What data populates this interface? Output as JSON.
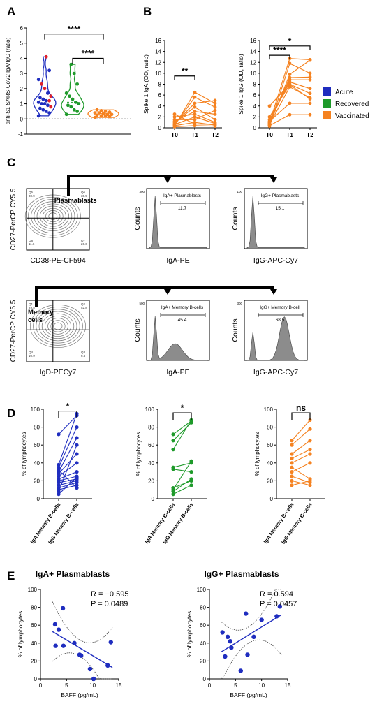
{
  "panel_letters": [
    "A",
    "B",
    "C",
    "D",
    "E"
  ],
  "colors": {
    "acute": "#1f2dbf",
    "recovered": "#1e9a2a",
    "vaccinated": "#f58220",
    "red": "#e0202a",
    "hist_fill": "#8c8c8c",
    "ci": "#444444"
  },
  "legend": [
    {
      "label": "Acute",
      "color": "#1f2dbf"
    },
    {
      "label": "Recovered",
      "color": "#1e9a2a"
    },
    {
      "label": "Vaccinated",
      "color": "#f58220"
    }
  ],
  "chart_data": [
    {
      "id": "A",
      "type": "scatter",
      "title": "",
      "xlabel": "",
      "ylabel": "anti-S1 SARS-CoV2 IgA/IgG (ratio)",
      "ylim": [
        -1,
        6
      ],
      "yticks": [
        -1,
        0,
        1,
        2,
        3,
        4,
        5,
        6
      ],
      "groups": [
        {
          "name": "Acute",
          "color": "#1f2dbf",
          "values": [
            0.2,
            0.4,
            0.5,
            0.6,
            0.7,
            0.8,
            0.9,
            1.0,
            1.0,
            1.1,
            1.2,
            1.2,
            1.3,
            1.4,
            1.5,
            1.7,
            2.0,
            2.3,
            2.6,
            3.2,
            4.1
          ],
          "red_points": [
            0.8,
            1.2,
            1.5,
            2.0,
            2.3,
            4.1
          ]
        },
        {
          "name": "Recovered",
          "color": "#1e9a2a",
          "values": [
            0.3,
            0.5,
            0.6,
            0.8,
            0.9,
            1.0,
            1.1,
            1.3,
            1.5,
            1.7,
            2.3,
            3.0,
            3.6
          ]
        },
        {
          "name": "Vaccinated",
          "color": "#f58220",
          "values": [
            0.1,
            0.15,
            0.2,
            0.2,
            0.25,
            0.3,
            0.3,
            0.35,
            0.4,
            0.4,
            0.45,
            0.5,
            0.55,
            0.6
          ]
        }
      ],
      "significance": [
        {
          "from": 0,
          "to": 2,
          "label": "****",
          "y": 5.6
        },
        {
          "from": 1,
          "to": 2,
          "label": "****",
          "y": 4.0
        }
      ]
    },
    {
      "id": "B1",
      "type": "line",
      "ylabel": "Spike 1 IgA (OD, ratio)",
      "ylim": [
        0,
        16
      ],
      "yticks": [
        0,
        2,
        4,
        6,
        8,
        10,
        12,
        14,
        16
      ],
      "categories": [
        "T0",
        "T1",
        "T2"
      ],
      "series": [
        {
          "values": [
            0.3,
            6.5,
            4.5
          ]
        },
        {
          "values": [
            0.5,
            5.6,
            3.8
          ]
        },
        {
          "values": [
            0.8,
            4.5,
            5.0
          ]
        },
        {
          "values": [
            1.0,
            3.8,
            1.5
          ]
        },
        {
          "values": [
            1.2,
            3.0,
            2.5
          ]
        },
        {
          "values": [
            2.0,
            2.5,
            1.0
          ]
        },
        {
          "values": [
            0.6,
            2.0,
            0.8
          ]
        },
        {
          "values": [
            1.5,
            1.5,
            3.2
          ]
        },
        {
          "values": [
            0.4,
            1.0,
            0.5
          ]
        },
        {
          "values": [
            2.5,
            0.7,
            0.6
          ]
        },
        {
          "values": [
            0.2,
            0.4,
            0.3
          ]
        }
      ],
      "significance": [
        {
          "from": 0,
          "to": 1,
          "label": "**",
          "y": 9.5
        }
      ]
    },
    {
      "id": "B2",
      "type": "line",
      "ylabel": "Spike 1 IgG (OD, ratio)",
      "ylim": [
        0,
        16
      ],
      "yticks": [
        0,
        2,
        4,
        6,
        8,
        10,
        12,
        14,
        16
      ],
      "categories": [
        "T0",
        "T1",
        "T2"
      ],
      "series": [
        {
          "values": [
            0.3,
            11.8,
            10.0
          ]
        },
        {
          "values": [
            0.5,
            9.8,
            12.4
          ]
        },
        {
          "values": [
            0.8,
            9.2,
            9.3
          ]
        },
        {
          "values": [
            1.0,
            8.8,
            8.8
          ]
        },
        {
          "values": [
            1.5,
            8.4,
            7.2
          ]
        },
        {
          "values": [
            4.0,
            8.0,
            6.3
          ]
        },
        {
          "values": [
            2.0,
            7.9,
            5.3
          ]
        },
        {
          "values": [
            0.6,
            7.5,
            5.5
          ]
        },
        {
          "values": [
            1.2,
            4.5,
            4.5
          ]
        },
        {
          "values": [
            0.4,
            2.4,
            2.4
          ]
        },
        {
          "values": [
            0.9,
            12.7,
            12.5
          ]
        }
      ],
      "significance": [
        {
          "from": 0,
          "to": 2,
          "label": "*",
          "y": 15.0
        },
        {
          "from": 0,
          "to": 1,
          "label": "****",
          "y": 13.3
        }
      ]
    },
    {
      "id": "C",
      "type": "flow-cytometry",
      "rows": [
        {
          "dot": {
            "ylabel": "CD27-PerCP CY5.5",
            "xlabel": "CD38-PE-CF594",
            "gate_label": "Plasmablasts",
            "quadrants": [
              "Q5\n30.9",
              "Q6\n30.9",
              "Q8\n11.6",
              "Q7\n26.6"
            ]
          },
          "hists": [
            {
              "xlabel": "IgA-PE",
              "ylabel": "Counts",
              "gate_title": "IgA+ Plasmablasts",
              "gate_value": "11.7",
              "ytick_top": "300"
            },
            {
              "xlabel": "IgG-APC-Cy7",
              "ylabel": "Counts",
              "gate_title": "IgG+ Plasmablasts",
              "gate_value": "15.1",
              "ytick_top": "100"
            }
          ]
        },
        {
          "dot": {
            "ylabel": "CD27-PerCP CY5.5",
            "xlabel": "IgD-PECy7",
            "gate_label": "Memory\ncells",
            "quadrants": [
              "Q1\n29.5",
              "Q2\n52.8",
              "Q4\n10.9",
              "Q3\n6.8"
            ]
          },
          "hists": [
            {
              "xlabel": "IgA-PE",
              "ylabel": "Counts",
              "gate_title": "IgA+ Memory B-cells",
              "gate_value": "45.4",
              "ytick_top": "500"
            },
            {
              "xlabel": "IgG-APC-Cy7",
              "ylabel": "Counts",
              "gate_title": "IgG+ Memory B-cell",
              "gate_value": "68.5",
              "ytick_top": "300"
            }
          ]
        }
      ]
    },
    {
      "id": "D1",
      "type": "line",
      "color": "#1f2dbf",
      "ylabel": "% of lymphocytes",
      "ylim": [
        0,
        100
      ],
      "yticks": [
        0,
        20,
        40,
        60,
        80,
        100
      ],
      "categories": [
        "IgA Memory B-cells",
        "IgG Memory B-cells"
      ],
      "series": [
        {
          "values": [
            72,
            93
          ]
        },
        {
          "values": [
            38,
            95
          ]
        },
        {
          "values": [
            35,
            80
          ]
        },
        {
          "values": [
            30,
            68
          ]
        },
        {
          "values": [
            28,
            50
          ]
        },
        {
          "values": [
            25,
            40
          ]
        },
        {
          "values": [
            22,
            30
          ]
        },
        {
          "values": [
            20,
            25
          ]
        },
        {
          "values": [
            18,
            22
          ]
        },
        {
          "values": [
            15,
            20
          ]
        },
        {
          "values": [
            12,
            18
          ]
        },
        {
          "values": [
            10,
            15
          ]
        },
        {
          "values": [
            8,
            60
          ]
        },
        {
          "values": [
            5,
            24
          ]
        },
        {
          "values": [
            32,
            12
          ]
        }
      ],
      "significance": [
        {
          "from": 0,
          "to": 1,
          "label": "*",
          "y": 98
        }
      ]
    },
    {
      "id": "D2",
      "type": "line",
      "color": "#1e9a2a",
      "ylabel": "% of lymphocytes",
      "ylim": [
        0,
        100
      ],
      "yticks": [
        0,
        20,
        40,
        60,
        80,
        100
      ],
      "categories": [
        "IgA Memory B-cells",
        "IgG Memory B-cells"
      ],
      "series": [
        {
          "values": [
            72,
            87
          ]
        },
        {
          "values": [
            65,
            85
          ]
        },
        {
          "values": [
            55,
            88
          ]
        },
        {
          "values": [
            35,
            40
          ]
        },
        {
          "values": [
            33,
            30
          ]
        },
        {
          "values": [
            12,
            20
          ]
        },
        {
          "values": [
            8,
            22
          ]
        },
        {
          "values": [
            5,
            15
          ]
        },
        {
          "values": [
            10,
            42
          ]
        }
      ],
      "significance": [
        {
          "from": 0,
          "to": 1,
          "label": "*",
          "y": 96
        }
      ]
    },
    {
      "id": "D3",
      "type": "line",
      "color": "#f58220",
      "ylabel": "% of lymphocytes",
      "ylim": [
        0,
        100
      ],
      "yticks": [
        0,
        20,
        40,
        60,
        80,
        100
      ],
      "categories": [
        "IgA Memory B-cells",
        "IgG Memory B-cells"
      ],
      "series": [
        {
          "values": [
            65,
            88
          ]
        },
        {
          "values": [
            60,
            78
          ]
        },
        {
          "values": [
            50,
            65
          ]
        },
        {
          "values": [
            45,
            55
          ]
        },
        {
          "values": [
            40,
            50
          ]
        },
        {
          "values": [
            35,
            22
          ]
        },
        {
          "values": [
            25,
            18
          ]
        },
        {
          "values": [
            20,
            15
          ]
        },
        {
          "values": [
            15,
            20
          ]
        },
        {
          "values": [
            30,
            40
          ]
        }
      ],
      "significance": [
        {
          "from": 0,
          "to": 1,
          "label": "ns",
          "y": 96
        }
      ]
    },
    {
      "id": "E1",
      "type": "scatter",
      "title": "IgA+ Plasmablasts",
      "xlabel": "BAFF (pg/mL)",
      "ylabel": "% of lymphocytes",
      "xlim": [
        0,
        15
      ],
      "ylim": [
        0,
        100
      ],
      "xticks": [
        0,
        5,
        10,
        15
      ],
      "yticks": [
        0,
        20,
        40,
        60,
        80,
        100
      ],
      "points": [
        [
          2.8,
          61
        ],
        [
          3.5,
          55
        ],
        [
          4.3,
          79
        ],
        [
          2.9,
          37
        ],
        [
          4.4,
          37
        ],
        [
          6.5,
          40
        ],
        [
          7.5,
          27
        ],
        [
          7.8,
          26
        ],
        [
          9.5,
          11
        ],
        [
          10.2,
          0
        ],
        [
          12.9,
          15
        ],
        [
          13.5,
          41
        ]
      ],
      "fit": {
        "slope": -3.5,
        "intercept": 61
      },
      "ci_band": true,
      "stats": [
        "R = −0.595",
        "P = 0.0489"
      ]
    },
    {
      "id": "E2",
      "type": "scatter",
      "title": "IgG+ Plasmablasts",
      "xlabel": "BAFF (pg/mL)",
      "ylabel": "% of lymphocytes",
      "xlim": [
        0,
        15
      ],
      "ylim": [
        0,
        100
      ],
      "xticks": [
        0,
        5,
        10,
        15
      ],
      "yticks": [
        0,
        20,
        40,
        60,
        80,
        100
      ],
      "points": [
        [
          2.5,
          52
        ],
        [
          3.0,
          25
        ],
        [
          3.5,
          47
        ],
        [
          4.0,
          42
        ],
        [
          4.2,
          35
        ],
        [
          6.0,
          9
        ],
        [
          7.0,
          73
        ],
        [
          7.3,
          27
        ],
        [
          8.5,
          47
        ],
        [
          10.0,
          66
        ],
        [
          12.9,
          70
        ],
        [
          13.5,
          81
        ]
      ],
      "fit": {
        "slope": 3.6,
        "intercept": 22
      },
      "ci_band": true,
      "stats": [
        "R = 0.594",
        "P = 0.0457"
      ]
    }
  ]
}
